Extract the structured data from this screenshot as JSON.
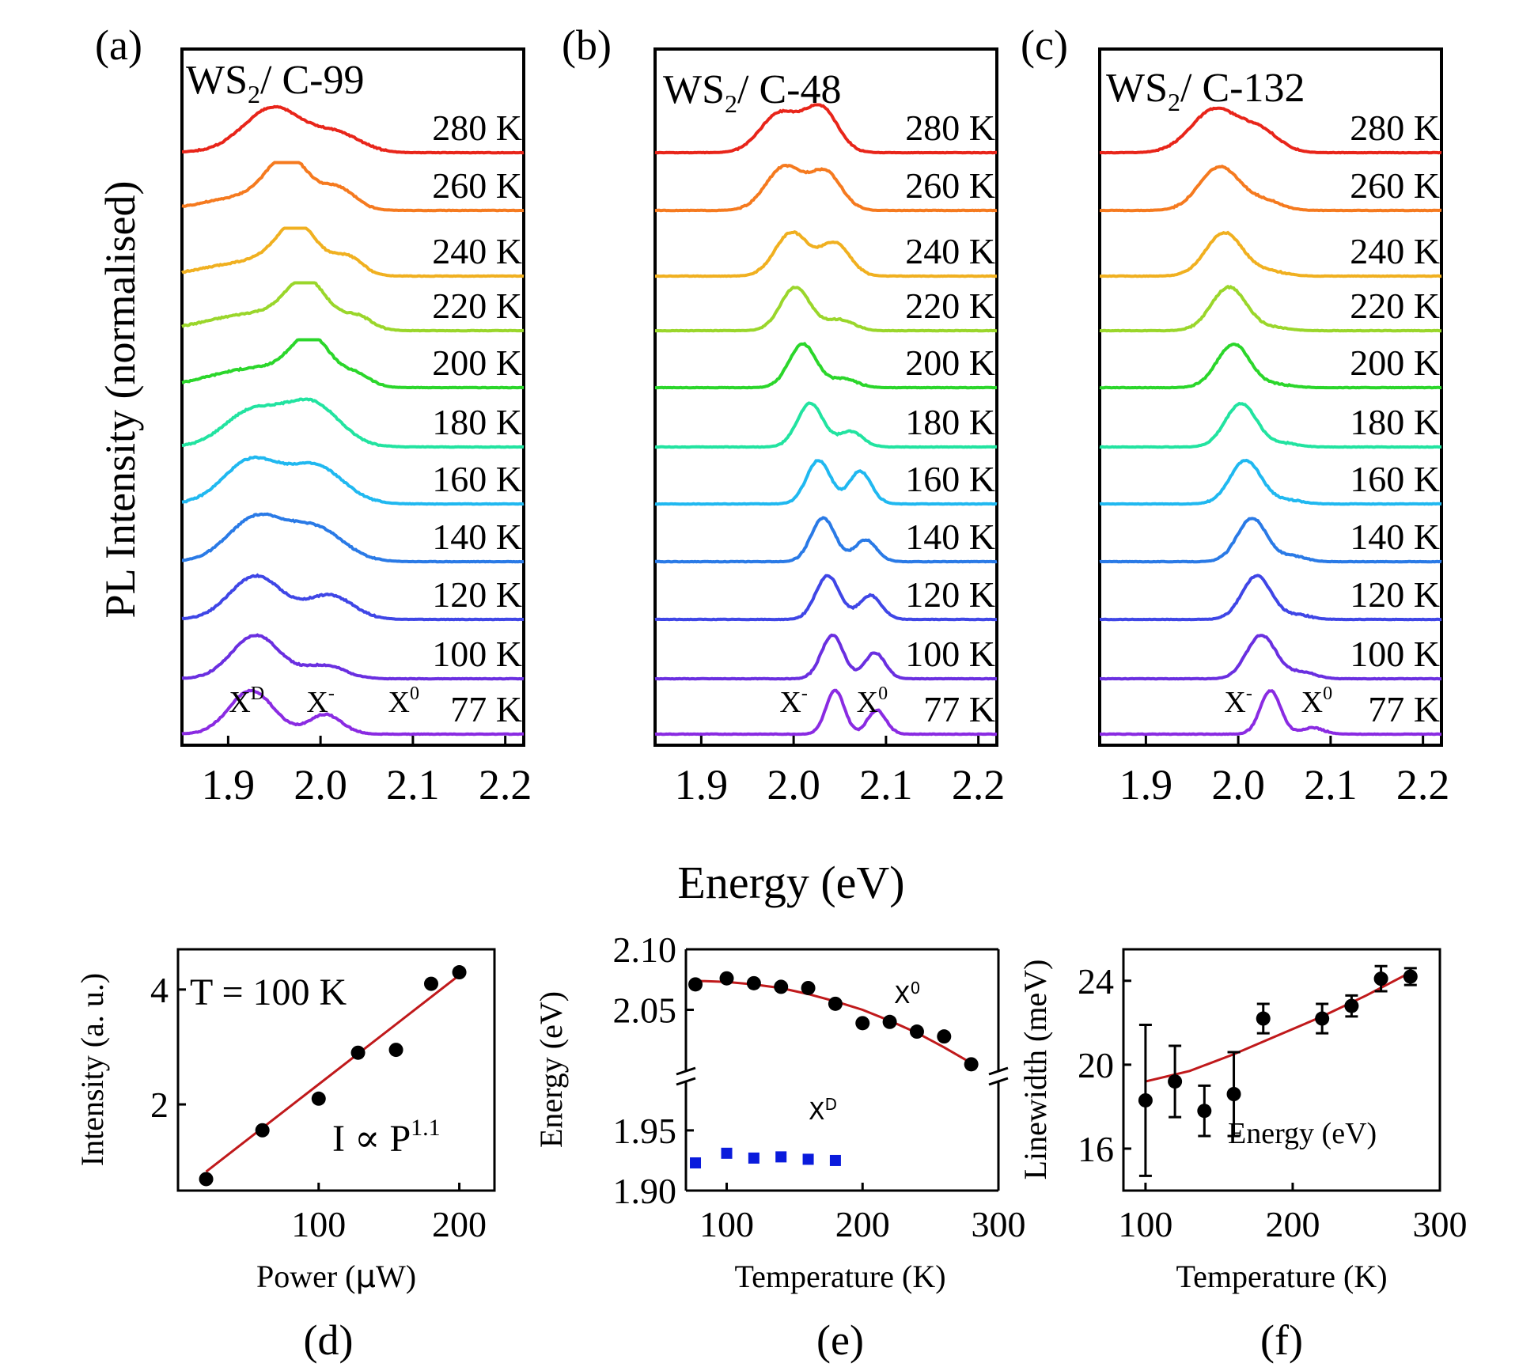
{
  "figure": {
    "shared_xlabel": "Energy (eV)",
    "shared_ylabel": "PL Intensity (normalised)"
  },
  "chart_data": [
    {
      "type": "line",
      "panel": "(a)",
      "sample": "WS2/ C-99",
      "sample_base": "WS",
      "sample_sub": "2",
      "sample_rest": "/ C-99",
      "xlim": [
        1.85,
        2.22
      ],
      "xticks": [
        1.9,
        2.0,
        2.1,
        2.2
      ],
      "xtick_labels": [
        "1.9",
        "2.0",
        "2.1",
        "2.2"
      ],
      "peak_labels": [
        {
          "base": "X",
          "sup": "D",
          "x": 1.92
        },
        {
          "base": "X",
          "sup": "-",
          "x": 2.0
        },
        {
          "base": "X",
          "sup": "0",
          "x": 2.085
        }
      ],
      "series": [
        {
          "name": "77 K",
          "color": "#8a2be2",
          "peaks": [
            [
              1.925,
              0.024,
              1.0
            ],
            [
              2.005,
              0.018,
              0.45
            ]
          ],
          "bg": 0.0
        },
        {
          "name": "100 K",
          "color": "#6a2fe0",
          "peaks": [
            [
              1.93,
              0.026,
              1.0
            ],
            [
              2.005,
              0.022,
              0.3
            ]
          ],
          "bg": 0.0
        },
        {
          "name": "120 K",
          "color": "#3f46e6",
          "peaks": [
            [
              1.93,
              0.028,
              1.0
            ],
            [
              2.01,
              0.025,
              0.55
            ]
          ],
          "bg": 0.0
        },
        {
          "name": "140 K",
          "color": "#2a7ae6",
          "peaks": [
            [
              1.93,
              0.03,
              1.0
            ],
            [
              1.995,
              0.03,
              0.75
            ]
          ],
          "bg": 0.0
        },
        {
          "name": "160 K",
          "color": "#20b8f0",
          "peaks": [
            [
              1.925,
              0.03,
              1.0
            ],
            [
              1.995,
              0.03,
              0.85
            ]
          ],
          "bg": 0.0
        },
        {
          "name": "180 K",
          "color": "#22e3a0",
          "peaks": [
            [
              1.925,
              0.03,
              0.8
            ],
            [
              1.99,
              0.03,
              1.0
            ]
          ],
          "bg": 0.0
        },
        {
          "name": "200 K",
          "color": "#2bd62b",
          "peaks": [
            [
              1.93,
              0.05,
              0.4
            ],
            [
              1.99,
              0.022,
              1.0
            ],
            [
              2.04,
              0.015,
              0.25
            ]
          ],
          "bg": 0.05
        },
        {
          "name": "220 K",
          "color": "#9ad62b",
          "peaks": [
            [
              1.93,
              0.05,
              0.35
            ],
            [
              1.985,
              0.022,
              1.0
            ],
            [
              2.04,
              0.016,
              0.3
            ]
          ],
          "bg": 0.05
        },
        {
          "name": "240 K",
          "color": "#f0b020",
          "peaks": [
            [
              1.93,
              0.05,
              0.3
            ],
            [
              1.975,
              0.022,
              1.0
            ],
            [
              2.03,
              0.016,
              0.4
            ]
          ],
          "bg": 0.05
        },
        {
          "name": "260 K",
          "color": "#f57a1f",
          "peaks": [
            [
              1.93,
              0.05,
              0.3
            ],
            [
              1.965,
              0.022,
              1.0
            ],
            [
              2.02,
              0.018,
              0.45
            ]
          ],
          "bg": 0.05
        },
        {
          "name": "280 K",
          "color": "#e8251a",
          "peaks": [
            [
              1.95,
              0.032,
              1.0
            ],
            [
              2.02,
              0.025,
              0.4
            ]
          ],
          "bg": 0.05
        }
      ]
    },
    {
      "type": "line",
      "panel": "(b)",
      "sample": "WS2/ C-48",
      "sample_base": "WS",
      "sample_sub": "2",
      "sample_rest": "/ C-48",
      "xlim": [
        1.85,
        2.22
      ],
      "xticks": [
        1.9,
        2.0,
        2.1,
        2.2
      ],
      "xtick_labels": [
        "1.9",
        "2.0",
        "2.1",
        "2.2"
      ],
      "peak_labels": [
        {
          "base": "X",
          "sup": "-",
          "x": 2.0
        },
        {
          "base": "X",
          "sup": "0",
          "x": 2.085
        }
      ],
      "series": [
        {
          "name": "77 K",
          "color": "#8a2be2",
          "peaks": [
            [
              2.045,
              0.01,
              1.0
            ],
            [
              2.09,
              0.01,
              0.55
            ]
          ],
          "bg": 0.0
        },
        {
          "name": "100 K",
          "color": "#6a2fe0",
          "peaks": [
            [
              2.042,
              0.012,
              1.0
            ],
            [
              2.088,
              0.011,
              0.6
            ]
          ],
          "bg": 0.0
        },
        {
          "name": "120 K",
          "color": "#3f46e6",
          "peaks": [
            [
              2.037,
              0.013,
              1.0
            ],
            [
              2.083,
              0.012,
              0.55
            ]
          ],
          "bg": 0.0
        },
        {
          "name": "140 K",
          "color": "#2a7ae6",
          "peaks": [
            [
              2.032,
              0.013,
              1.0
            ],
            [
              2.078,
              0.012,
              0.5
            ]
          ],
          "bg": 0.0
        },
        {
          "name": "160 K",
          "color": "#20b8f0",
          "peaks": [
            [
              2.027,
              0.013,
              1.0
            ],
            [
              2.072,
              0.012,
              0.75
            ]
          ],
          "bg": 0.0
        },
        {
          "name": "180 K",
          "color": "#22e3a0",
          "peaks": [
            [
              2.018,
              0.014,
              1.0
            ],
            [
              2.062,
              0.013,
              0.35
            ]
          ],
          "bg": 0.0
        },
        {
          "name": "200 K",
          "color": "#2bd62b",
          "peaks": [
            [
              2.01,
              0.015,
              1.0
            ],
            [
              2.055,
              0.014,
              0.2
            ]
          ],
          "bg": 0.0
        },
        {
          "name": "220 K",
          "color": "#9ad62b",
          "peaks": [
            [
              2.002,
              0.016,
              1.0
            ],
            [
              2.05,
              0.015,
              0.25
            ]
          ],
          "bg": 0.0
        },
        {
          "name": "240 K",
          "color": "#f0b020",
          "peaks": [
            [
              1.998,
              0.018,
              1.0
            ],
            [
              2.045,
              0.016,
              0.75
            ]
          ],
          "bg": 0.0
        },
        {
          "name": "260 K",
          "color": "#f57a1f",
          "peaks": [
            [
              1.99,
              0.02,
              1.0
            ],
            [
              2.035,
              0.017,
              0.85
            ]
          ],
          "bg": 0.0
        },
        {
          "name": "280 K",
          "color": "#e8251a",
          "peaks": [
            [
              1.985,
              0.021,
              0.9
            ],
            [
              2.03,
              0.018,
              1.0
            ]
          ],
          "bg": 0.0
        }
      ]
    },
    {
      "type": "line",
      "panel": "(c)",
      "sample": "WS2/ C-132",
      "sample_base": "WS",
      "sample_sub": "2",
      "sample_rest": "/ C-132",
      "xlim": [
        1.85,
        2.22
      ],
      "xticks": [
        1.9,
        2.0,
        2.1,
        2.2
      ],
      "xtick_labels": [
        "1.9",
        "2.0",
        "2.1",
        "2.2"
      ],
      "peak_labels": [
        {
          "base": "X",
          "sup": "-",
          "x": 2.0
        },
        {
          "base": "X",
          "sup": "0",
          "x": 2.085
        }
      ],
      "series": [
        {
          "name": "77 K",
          "color": "#8a2be2",
          "peaks": [
            [
              2.035,
              0.011,
              1.0
            ],
            [
              2.08,
              0.012,
              0.15
            ]
          ],
          "bg": 0.0
        },
        {
          "name": "100 K",
          "color": "#6a2fe0",
          "peaks": [
            [
              2.025,
              0.016,
              1.0
            ],
            [
              2.07,
              0.014,
              0.15
            ]
          ],
          "bg": 0.0
        },
        {
          "name": "120 K",
          "color": "#3f46e6",
          "peaks": [
            [
              2.02,
              0.016,
              1.0
            ],
            [
              2.065,
              0.014,
              0.1
            ]
          ],
          "bg": 0.0
        },
        {
          "name": "140 K",
          "color": "#2a7ae6",
          "peaks": [
            [
              2.015,
              0.016,
              1.0
            ],
            [
              2.06,
              0.014,
              0.12
            ]
          ],
          "bg": 0.0
        },
        {
          "name": "160 K",
          "color": "#20b8f0",
          "peaks": [
            [
              2.008,
              0.017,
              1.0
            ],
            [
              2.055,
              0.015,
              0.08
            ]
          ],
          "bg": 0.0
        },
        {
          "name": "180 K",
          "color": "#22e3a0",
          "peaks": [
            [
              2.003,
              0.017,
              1.0
            ],
            [
              2.05,
              0.015,
              0.08
            ]
          ],
          "bg": 0.0
        },
        {
          "name": "200 K",
          "color": "#2bd62b",
          "peaks": [
            [
              1.995,
              0.018,
              1.0
            ],
            [
              2.045,
              0.016,
              0.06
            ]
          ],
          "bg": 0.0
        },
        {
          "name": "220 K",
          "color": "#9ad62b",
          "peaks": [
            [
              1.99,
              0.019,
              1.0
            ],
            [
              2.04,
              0.016,
              0.06
            ]
          ],
          "bg": 0.0
        },
        {
          "name": "240 K",
          "color": "#f0b020",
          "peaks": [
            [
              1.985,
              0.02,
              1.0
            ],
            [
              2.035,
              0.017,
              0.1
            ]
          ],
          "bg": 0.0
        },
        {
          "name": "260 K",
          "color": "#f57a1f",
          "peaks": [
            [
              1.98,
              0.022,
              1.0
            ],
            [
              2.03,
              0.018,
              0.2
            ]
          ],
          "bg": 0.0
        },
        {
          "name": "280 K",
          "color": "#e8251a",
          "peaks": [
            [
              1.975,
              0.026,
              1.0
            ],
            [
              2.025,
              0.02,
              0.45
            ]
          ],
          "bg": 0.0
        }
      ]
    },
    {
      "type": "scatter",
      "panel": "(d)",
      "xlabel_main": "Power (",
      "xlabel_mu": "μ",
      "xlabel_tail": "W)",
      "ylabel": "Intensity (a. u.)",
      "xlim": [
        0,
        225
      ],
      "ylim": [
        0.5,
        4.7
      ],
      "xticks": [
        100,
        200
      ],
      "xtick_labels": [
        "100",
        "200"
      ],
      "yticks": [
        2,
        4
      ],
      "ytick_labels": [
        "2",
        "4"
      ],
      "annotation": "T = 100 K",
      "formula_main": "I ∝ P",
      "formula_exp": "1.1",
      "x": [
        20,
        60,
        100,
        128,
        155,
        180,
        200
      ],
      "y": [
        0.7,
        1.55,
        2.1,
        2.9,
        2.95,
        4.1,
        4.3
      ],
      "fit": {
        "x": [
          20,
          200
        ],
        "y": [
          0.83,
          4.25
        ],
        "color": "#c0191b"
      }
    },
    {
      "type": "scatter",
      "panel": "(e)",
      "xlabel": "Temperature (K)",
      "ylabel": "Energy (eV)",
      "xlim": [
        70,
        300
      ],
      "xticks": [
        100,
        200,
        300
      ],
      "xtick_labels": [
        "100",
        "200",
        "300"
      ],
      "upper_ylim": [
        2.0,
        2.1
      ],
      "upper_yticks": [
        2.05,
        2.1
      ],
      "upper_ytick_labels": [
        "2.05",
        "2.10"
      ],
      "lower_ylim": [
        1.9,
        1.99
      ],
      "lower_yticks": [
        1.9,
        1.95
      ],
      "lower_ytick_labels": [
        "1.90",
        "1.95"
      ],
      "series": [
        {
          "name": "X0",
          "label_base": "X",
          "label_sup": "0",
          "marker": "circle",
          "color": "#000000",
          "x": [
            77,
            100,
            120,
            140,
            160,
            180,
            200,
            220,
            240,
            260,
            280
          ],
          "y": [
            2.071,
            2.076,
            2.072,
            2.069,
            2.068,
            2.055,
            2.039,
            2.04,
            2.032,
            2.028,
            2.005
          ]
        },
        {
          "name": "XD",
          "label_base": "X",
          "label_sup": "D",
          "marker": "square",
          "color": "#0a1bdc",
          "x": [
            77,
            100,
            120,
            140,
            160,
            180
          ],
          "y": [
            1.923,
            1.931,
            1.927,
            1.928,
            1.926,
            1.925
          ]
        }
      ],
      "fit": {
        "color": "#c0191b",
        "x": [
          77,
          100,
          120,
          140,
          160,
          180,
          200,
          220,
          240,
          260,
          280
        ],
        "y": [
          2.074,
          2.073,
          2.071,
          2.068,
          2.063,
          2.057,
          2.05,
          2.041,
          2.031,
          2.019,
          2.006
        ]
      }
    },
    {
      "type": "scatter",
      "panel": "(f)",
      "xlabel": "Temperature (K)",
      "ylabel": "Linewidth (meV)",
      "xlim": [
        85,
        300
      ],
      "ylim": [
        14,
        25.5
      ],
      "xticks": [
        100,
        200,
        300
      ],
      "xtick_labels": [
        "100",
        "200",
        "300"
      ],
      "yticks": [
        16,
        20,
        24
      ],
      "ytick_labels": [
        "16",
        "20",
        "24"
      ],
      "inner_label": "Energy (eV)",
      "x": [
        100,
        120,
        140,
        160,
        180,
        220,
        240,
        260,
        280
      ],
      "y": [
        18.3,
        19.2,
        17.8,
        18.6,
        22.2,
        22.2,
        22.8,
        24.1,
        24.2
      ],
      "yerr": [
        3.6,
        1.7,
        1.2,
        2.0,
        0.7,
        0.7,
        0.5,
        0.6,
        0.4
      ],
      "fit": {
        "color": "#c0191b",
        "x": [
          100,
          130,
          160,
          190,
          220,
          250,
          280
        ],
        "y": [
          19.2,
          19.7,
          20.5,
          21.4,
          22.3,
          23.3,
          24.4
        ]
      }
    }
  ]
}
